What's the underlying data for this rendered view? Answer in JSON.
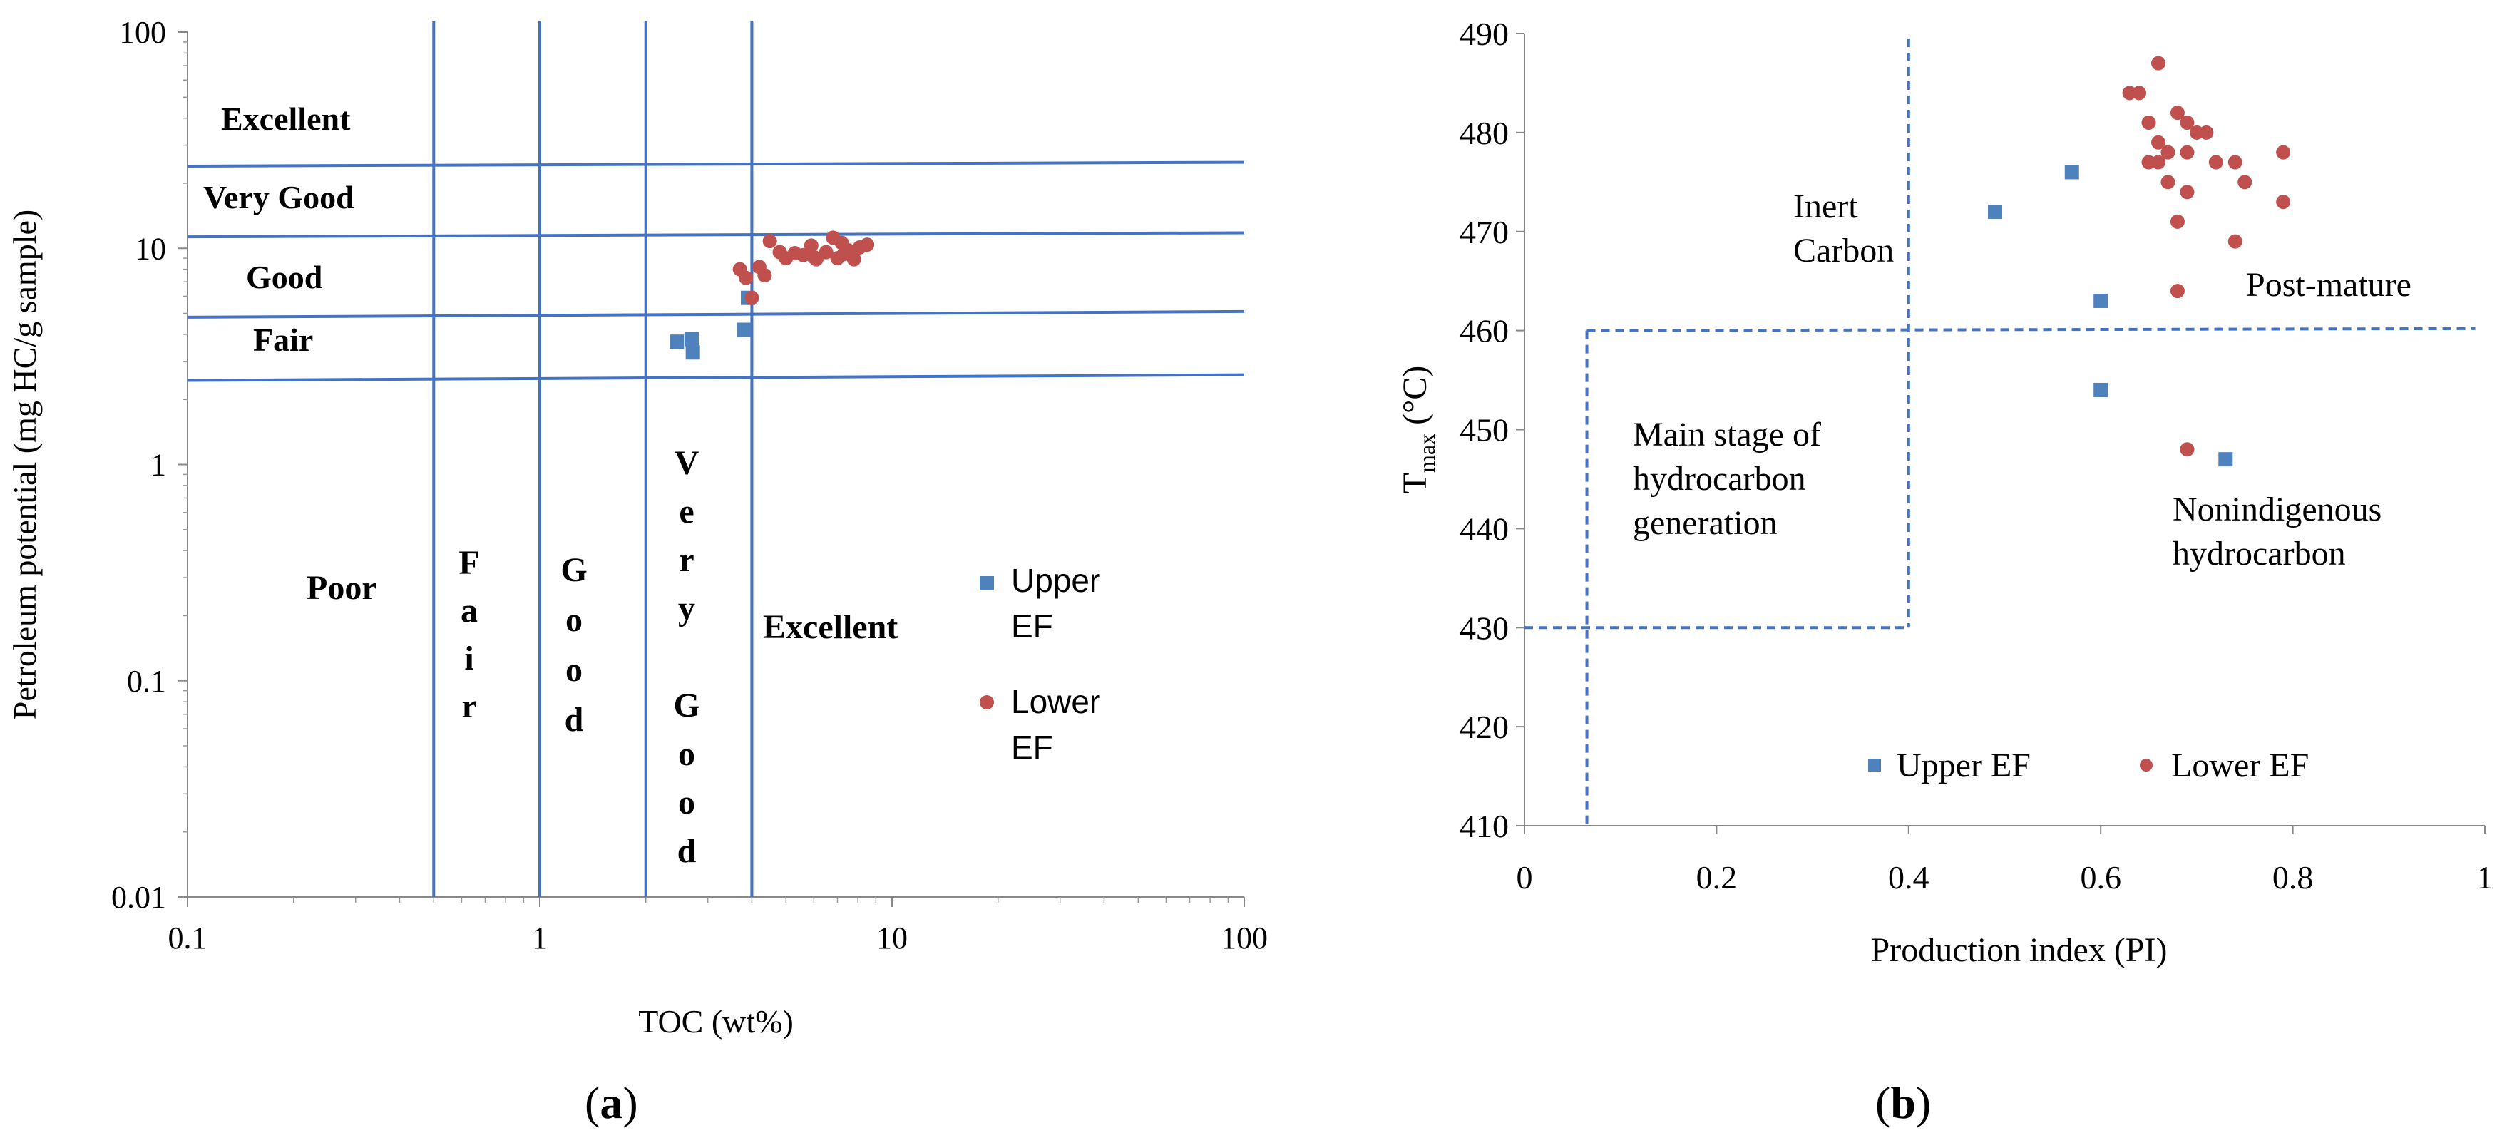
{
  "chart_data": [
    {
      "type": "scatter",
      "panel_label": "a",
      "xlabel": "TOC (wt%)",
      "ylabel": "Petroleum potential (mg HC/g sample)",
      "x_scale": "log",
      "y_scale": "log",
      "xlim": [
        0.1,
        100
      ],
      "ylim": [
        0.01,
        100
      ],
      "x_ticks": [
        "0.1",
        "1",
        "10",
        "100"
      ],
      "y_ticks": [
        "0.01",
        "0.1",
        "1",
        "10",
        "100"
      ],
      "grid": false,
      "legend_position": "right",
      "toc_boundaries": [
        0.5,
        1,
        2,
        4
      ],
      "pp_boundaries": [
        {
          "y_start": 24,
          "y_end": 25
        },
        {
          "y_start": 11.3,
          "y_end": 11.8
        },
        {
          "y_start": 4.8,
          "y_end": 5.1
        },
        {
          "y_start": 2.45,
          "y_end": 2.6
        }
      ],
      "row_labels": [
        "Excellent",
        "Very Good",
        "Good",
        "Fair"
      ],
      "column_labels": [
        {
          "text": "Poor",
          "letters": [
            "Poor"
          ]
        },
        {
          "text": "Fair",
          "letters": [
            "F",
            "a",
            "i",
            "r"
          ]
        },
        {
          "text": "Good",
          "letters": [
            "G",
            "o",
            "o",
            "d"
          ]
        },
        {
          "text": "Very Good",
          "letters": [
            "V",
            "e",
            "r",
            "y",
            "",
            "G",
            "o",
            "o",
            "d"
          ]
        },
        {
          "text": "Excellent",
          "letters": [
            "Excellent"
          ]
        }
      ],
      "series": [
        {
          "name_lines": [
            "Upper",
            "EF"
          ],
          "color": "#4f81bd",
          "marker": "square",
          "points": [
            [
              2.45,
              3.7
            ],
            [
              2.7,
              3.8
            ],
            [
              2.72,
              3.3
            ],
            [
              3.8,
              4.2
            ],
            [
              3.9,
              5.9
            ]
          ]
        },
        {
          "name_lines": [
            "Lower",
            "EF"
          ],
          "color": "#c0504d",
          "marker": "circle",
          "points": [
            [
              3.7,
              8.0
            ],
            [
              3.85,
              7.3
            ],
            [
              4.0,
              5.9
            ],
            [
              4.2,
              8.2
            ],
            [
              4.35,
              7.5
            ],
            [
              4.5,
              10.8
            ],
            [
              4.8,
              9.6
            ],
            [
              5.0,
              9.0
            ],
            [
              5.3,
              9.5
            ],
            [
              5.6,
              9.3
            ],
            [
              5.9,
              10.3
            ],
            [
              6.1,
              8.9
            ],
            [
              6.5,
              9.6
            ],
            [
              6.8,
              11.2
            ],
            [
              7.0,
              9.0
            ],
            [
              7.2,
              10.6
            ],
            [
              7.5,
              9.8
            ],
            [
              7.8,
              8.9
            ],
            [
              8.1,
              10.1
            ],
            [
              8.5,
              10.4
            ],
            [
              7.3,
              9.4
            ],
            [
              6.0,
              9.1
            ]
          ]
        }
      ]
    },
    {
      "type": "scatter",
      "panel_label": "b",
      "xlabel": "Production index (PI)",
      "ylabel_main": "T",
      "ylabel_sub": "max",
      "ylabel_unit": " (°C)",
      "xlim": [
        0,
        1
      ],
      "ylim": [
        410,
        490
      ],
      "x_ticks": [
        "0",
        "0.2",
        "0.4",
        "0.6",
        "0.8",
        "1"
      ],
      "y_ticks": [
        "410",
        "420",
        "430",
        "440",
        "450",
        "460",
        "470",
        "480",
        "490"
      ],
      "grid": false,
      "legend_position": "bottom-right",
      "zone_labels": [
        {
          "lines": [
            "Inert",
            "Carbon"
          ]
        },
        {
          "lines": [
            "Post-mature"
          ]
        },
        {
          "lines": [
            "Main stage of",
            "hydrocarbon",
            "generation"
          ]
        },
        {
          "lines": [
            "Nonindigenous",
            "hydrocarbon"
          ]
        }
      ],
      "series": [
        {
          "name": "Upper EF",
          "color": "#4f81bd",
          "marker": "square",
          "points": [
            [
              0.49,
              472
            ],
            [
              0.57,
              476
            ],
            [
              0.6,
              463
            ],
            [
              0.6,
              454
            ],
            [
              0.73,
              447
            ]
          ]
        },
        {
          "name": "Lower EF",
          "color": "#c0504d",
          "marker": "circle",
          "points": [
            [
              0.63,
              484
            ],
            [
              0.64,
              484
            ],
            [
              0.66,
              487
            ],
            [
              0.65,
              481
            ],
            [
              0.66,
              479
            ],
            [
              0.66,
              477
            ],
            [
              0.67,
              478
            ],
            [
              0.68,
              482
            ],
            [
              0.69,
              481
            ],
            [
              0.69,
              478
            ],
            [
              0.7,
              480
            ],
            [
              0.71,
              480
            ],
            [
              0.67,
              475
            ],
            [
              0.69,
              474
            ],
            [
              0.72,
              477
            ],
            [
              0.74,
              477
            ],
            [
              0.75,
              475
            ],
            [
              0.68,
              471
            ],
            [
              0.79,
              478
            ],
            [
              0.79,
              473
            ],
            [
              0.74,
              469
            ],
            [
              0.68,
              464
            ],
            [
              0.69,
              448
            ],
            [
              0.65,
              477
            ]
          ]
        }
      ]
    }
  ],
  "captions": [
    "a",
    "b"
  ]
}
